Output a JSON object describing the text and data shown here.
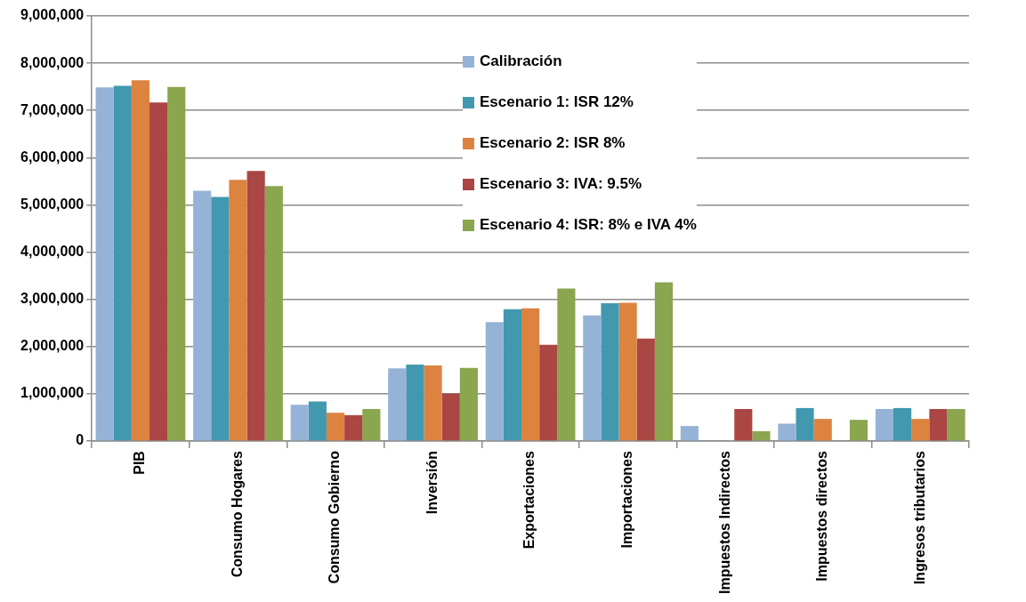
{
  "chart_data": {
    "type": "bar",
    "categories": [
      "PIB",
      "Consumo Hogares",
      "Consumo Gobierno",
      "Inversión",
      "Exportaciones",
      "Importaciones",
      "Impuestos Indirectos",
      "Impuestos directos",
      "Ingresos tributarios"
    ],
    "series": [
      {
        "name": "Calibración",
        "color": "#95b3d7",
        "values": [
          7490000,
          5300000,
          770000,
          1540000,
          2520000,
          2660000,
          320000,
          370000,
          680000
        ]
      },
      {
        "name": "Escenario 1: ISR 12%",
        "color": "#4198af",
        "values": [
          7520000,
          5170000,
          840000,
          1620000,
          2790000,
          2920000,
          null,
          700000,
          700000
        ]
      },
      {
        "name": "Escenario 2: ISR 8%",
        "color": "#dd8340",
        "values": [
          7640000,
          5530000,
          600000,
          1600000,
          2810000,
          2930000,
          null,
          470000,
          470000
        ]
      },
      {
        "name": "Escenario 3: IVA: 9.5%",
        "color": "#aa4644",
        "values": [
          7170000,
          5720000,
          550000,
          1010000,
          2040000,
          2170000,
          680000,
          null,
          680000
        ]
      },
      {
        "name": "Escenario 4: ISR: 8% e IVA 4%",
        "color": "#8aa64e",
        "values": [
          7500000,
          5400000,
          680000,
          1550000,
          3230000,
          3360000,
          210000,
          450000,
          680000
        ]
      }
    ],
    "ylim": [
      0,
      9000000
    ],
    "yticks": [
      {
        "value": 0,
        "label": "0"
      },
      {
        "value": 1000000,
        "label": "1,000,000"
      },
      {
        "value": 2000000,
        "label": "2,000,000"
      },
      {
        "value": 3000000,
        "label": "3,000,000"
      },
      {
        "value": 4000000,
        "label": "4,000,000"
      },
      {
        "value": 5000000,
        "label": "5,000,000"
      },
      {
        "value": 6000000,
        "label": "6,000,000"
      },
      {
        "value": 7000000,
        "label": "7,000,000"
      },
      {
        "value": 8000000,
        "label": "8,000,000"
      },
      {
        "value": 9000000,
        "label": "9,000,000"
      }
    ],
    "grid": "y",
    "legend": "top"
  }
}
